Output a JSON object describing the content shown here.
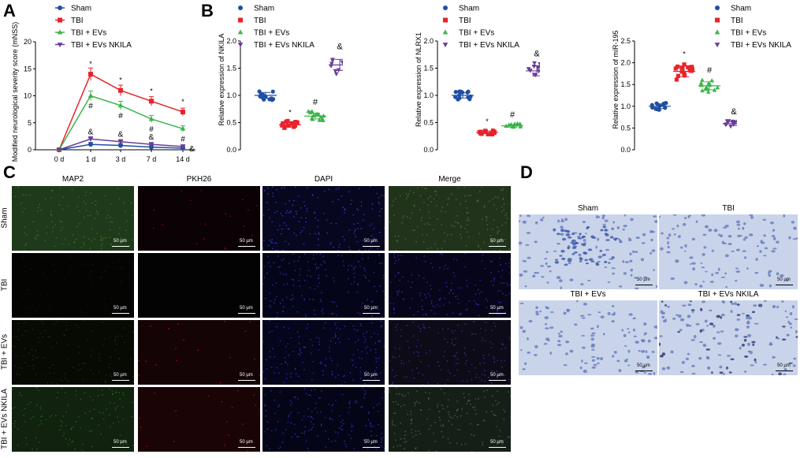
{
  "panels": {
    "A": "A",
    "B": "B",
    "C": "C",
    "D": "D"
  },
  "colors": {
    "sham": "#1f4fa3",
    "tbi": "#e8232a",
    "evs": "#3cb44b",
    "nkila": "#6a3d9a"
  },
  "chart_data": [
    {
      "id": "A",
      "type": "line",
      "ylabel": "Modified neurological severity score (mNSS)",
      "categories": [
        "0 d",
        "1 d",
        "3 d",
        "7 d",
        "14 d"
      ],
      "ylim": [
        0,
        20
      ],
      "yticks": [
        "0",
        "5",
        "10",
        "15",
        "20"
      ],
      "series": [
        {
          "name": "Sham",
          "values": [
            0,
            1.0,
            0.8,
            0.5,
            0.3
          ]
        },
        {
          "name": "TBI",
          "values": [
            0,
            14.0,
            11.0,
            9.0,
            7.0
          ]
        },
        {
          "name": "TBI + EVs",
          "values": [
            0,
            10.0,
            8.2,
            5.7,
            3.9
          ]
        },
        {
          "name": "TBI + EVs NKILA",
          "values": [
            0,
            2.0,
            1.5,
            1.0,
            0.6
          ]
        }
      ],
      "annotations": [
        {
          "cat": 1,
          "above": "*",
          "below": "#",
          "amp": "&"
        },
        {
          "cat": 2,
          "above": "*",
          "below": "#",
          "amp": "&"
        },
        {
          "cat": 3,
          "above": "*",
          "below": "#",
          "amp": "&"
        },
        {
          "cat": 4,
          "above": "*",
          "below": "#",
          "amp": "&"
        }
      ]
    },
    {
      "id": "B1",
      "type": "scatter",
      "ylabel": "Relative expression of NKILA",
      "ylim": [
        0,
        2.0
      ],
      "yticks": [
        "0.0",
        "0.5",
        "1.0",
        "1.5",
        "2.0"
      ],
      "groups": [
        {
          "name": "Sham",
          "mean": 1.0,
          "spread": 0.09,
          "sig": ""
        },
        {
          "name": "TBI",
          "mean": 0.46,
          "spread": 0.07,
          "sig": "*"
        },
        {
          "name": "TBI + EVs",
          "mean": 0.62,
          "spread": 0.09,
          "sig": "#"
        },
        {
          "name": "TBI + EVs NKILA",
          "mean": 1.56,
          "spread": 0.17,
          "sig": "&"
        }
      ]
    },
    {
      "id": "B2",
      "type": "scatter",
      "ylabel": "Relative expression of NLRX1",
      "ylim": [
        0,
        2.0
      ],
      "yticks": [
        "0.0",
        "0.5",
        "1.0",
        "1.5",
        "2.0"
      ],
      "groups": [
        {
          "name": "Sham",
          "mean": 1.0,
          "spread": 0.08,
          "sig": ""
        },
        {
          "name": "TBI",
          "mean": 0.32,
          "spread": 0.04,
          "sig": "*"
        },
        {
          "name": "TBI + EVs",
          "mean": 0.44,
          "spread": 0.04,
          "sig": "#"
        },
        {
          "name": "TBI + EVs NKILA",
          "mean": 1.45,
          "spread": 0.15,
          "sig": "&"
        }
      ]
    },
    {
      "id": "B3",
      "type": "scatter",
      "ylabel": "Relative expression of miR-195",
      "ylim": [
        0,
        2.5
      ],
      "yticks": [
        "0.0",
        "0.5",
        "1.0",
        "1.5",
        "2.0",
        "2.5"
      ],
      "groups": [
        {
          "name": "Sham",
          "mean": 1.0,
          "spread": 0.09,
          "sig": ""
        },
        {
          "name": "TBI",
          "mean": 1.8,
          "spread": 0.2,
          "sig": "*"
        },
        {
          "name": "TBI + EVs",
          "mean": 1.47,
          "spread": 0.15,
          "sig": "#"
        },
        {
          "name": "TBI + EVs NKILA",
          "mean": 0.6,
          "spread": 0.07,
          "sig": "&"
        }
      ]
    }
  ],
  "legend": [
    "Sham",
    "TBI",
    "TBI + EVs",
    "TBI + EVs NKILA"
  ],
  "panelC": {
    "columns": [
      "MAP2",
      "PKH26",
      "DAPI",
      "Merge"
    ],
    "rows": [
      "Sham",
      "TBI",
      "TBI + EVs",
      "TBI + EVs NKILA"
    ],
    "scale": "50 µm"
  },
  "panelD": {
    "labels": [
      "Sham",
      "TBI",
      "TBI + EVs",
      "TBI + EVs NKILA"
    ],
    "scale": "50 µm"
  }
}
